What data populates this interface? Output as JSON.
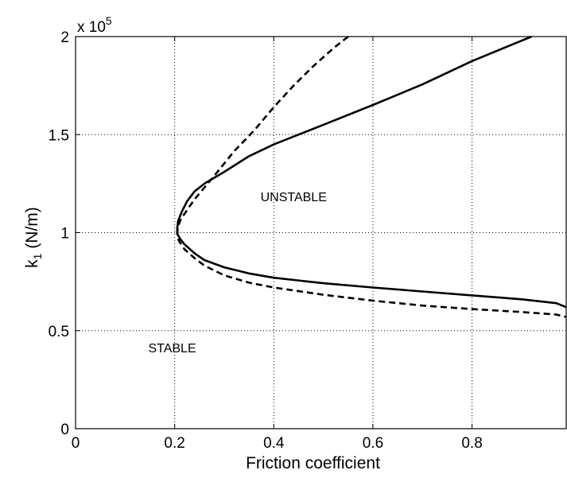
{
  "chart_data": {
    "type": "line",
    "title": "",
    "xlabel": "Friction coefficient",
    "ylabel_main": "k",
    "ylabel_sub": "1",
    "ylabel_unit": " (N/m)",
    "y_exponent_label": "x 10",
    "y_exponent_power": "5",
    "xlim": [
      0,
      0.99
    ],
    "ylim": [
      0,
      200000
    ],
    "grid": true,
    "x_ticks": [
      0,
      0.2,
      0.4,
      0.6,
      0.8
    ],
    "x_tick_labels": [
      "0",
      "0.2",
      "0.4",
      "0.6",
      "0.8"
    ],
    "y_ticks": [
      0,
      50000,
      100000,
      150000,
      200000
    ],
    "y_tick_labels": [
      "0",
      "0.5",
      "1",
      "1.5",
      "2"
    ],
    "annotations": [
      {
        "text": "UNSTABLE",
        "x": 0.44,
        "y": 116000
      },
      {
        "text": "STABLE",
        "x": 0.195,
        "y": 39000
      }
    ],
    "series": [
      {
        "style": "solid",
        "x": [
          0.92,
          0.8,
          0.7,
          0.6,
          0.5,
          0.4,
          0.35,
          0.3,
          0.26,
          0.24,
          0.225,
          0.215,
          0.207,
          0.205,
          0.206,
          0.212,
          0.22,
          0.24,
          0.26,
          0.3,
          0.35,
          0.4,
          0.5,
          0.6,
          0.7,
          0.8,
          0.9,
          0.97,
          0.99
        ],
        "y": [
          200000,
          187500,
          175600,
          165100,
          155000,
          145000,
          139000,
          131000,
          125000,
          121000,
          116000,
          111000,
          106000,
          102000,
          99000,
          96500,
          94000,
          89500,
          86000,
          82300,
          79200,
          77000,
          74200,
          72000,
          70000,
          68000,
          66000,
          64000,
          62000
        ]
      },
      {
        "style": "dashed",
        "x": [
          0.55,
          0.52,
          0.48,
          0.44,
          0.4,
          0.36,
          0.32,
          0.28,
          0.26,
          0.24,
          0.225,
          0.213,
          0.207,
          0.205,
          0.206,
          0.212,
          0.22,
          0.24,
          0.26,
          0.3,
          0.35,
          0.4,
          0.5,
          0.6,
          0.7,
          0.8,
          0.9,
          0.97,
          0.99
        ],
        "y": [
          200000,
          194000,
          185000,
          175000,
          164000,
          152000,
          141500,
          129000,
          123000,
          117000,
          111500,
          107000,
          103500,
          100000,
          97000,
          94500,
          91500,
          87000,
          83200,
          78200,
          74500,
          72000,
          68300,
          65300,
          62800,
          61000,
          59500,
          58200,
          57000
        ]
      }
    ]
  }
}
